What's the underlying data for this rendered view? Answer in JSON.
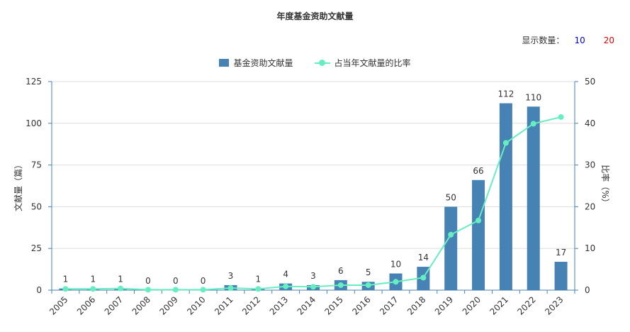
{
  "header": {
    "title": "年度基金资助文献量"
  },
  "toolbar": {
    "label": "显示数量：",
    "options": [
      "10",
      "20"
    ],
    "option_colors": [
      "#0000ee",
      "#dd0000"
    ]
  },
  "legend": {
    "bar_label": "基金资助文献量",
    "line_label": "占当年文献量的比率"
  },
  "colors": {
    "bar": "#4682b4",
    "line": "#66eec0",
    "axis": "#4682b4",
    "grid": "#dddddd",
    "text": "#333333"
  },
  "chart_data": {
    "type": "bar",
    "title": "年度基金资助文献量",
    "categories": [
      "2005",
      "2006",
      "2007",
      "2008",
      "2009",
      "2010",
      "2011",
      "2012",
      "2013",
      "2014",
      "2015",
      "2016",
      "2017",
      "2018",
      "2019",
      "2020",
      "2021",
      "2022",
      "2023"
    ],
    "series": [
      {
        "name": "基金资助文献量",
        "type": "bar",
        "values": [
          1,
          1,
          1,
          0,
          0,
          0,
          3,
          1,
          4,
          3,
          6,
          5,
          10,
          14,
          50,
          66,
          112,
          110,
          17
        ]
      },
      {
        "name": "占当年文献量的比率",
        "type": "line",
        "axis": "right",
        "values": [
          0.3,
          0.3,
          0.4,
          0.1,
          0.1,
          0.1,
          0.5,
          0.3,
          0.9,
          0.8,
          1.2,
          1.2,
          2.0,
          3.0,
          13.3,
          16.7,
          35.3,
          39.9,
          41.5
        ]
      }
    ],
    "ylabel": "文献量（篇）",
    "y2label": "比率（%）",
    "ylim": [
      0,
      125
    ],
    "yticks": [
      0,
      25,
      50,
      75,
      100,
      125
    ],
    "y2lim": [
      0,
      50
    ],
    "y2ticks": [
      0,
      10,
      20,
      30,
      40,
      50
    ],
    "grid": true,
    "legend_position": "top-center"
  }
}
